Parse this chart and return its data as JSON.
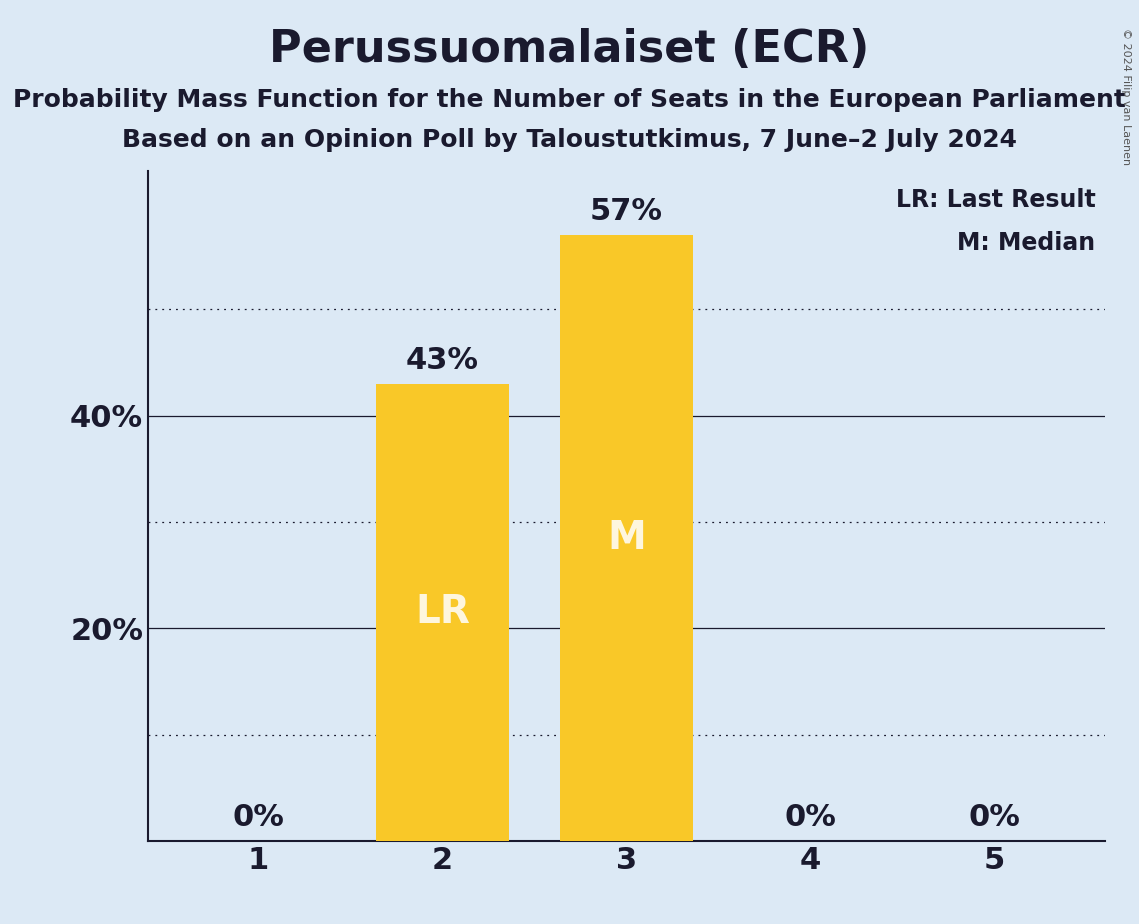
{
  "title": "Perussuomalaiset (ECR)",
  "subtitle1": "Probability Mass Function for the Number of Seats in the European Parliament",
  "subtitle2": "Based on an Opinion Poll by Taloustutkimus, 7 June–2 July 2024",
  "copyright": "© 2024 Filip van Laenen",
  "categories": [
    1,
    2,
    3,
    4,
    5
  ],
  "values": [
    0,
    43,
    57,
    0,
    0
  ],
  "bar_color": "#F9C828",
  "background_color": "#dce9f5",
  "bar_labels": [
    "0%",
    "43%",
    "57%",
    "0%",
    "0%"
  ],
  "bar_annotations": [
    "",
    "LR",
    "M",
    "",
    ""
  ],
  "yticks": [
    20,
    40
  ],
  "ytick_labels": [
    "20%",
    "40%"
  ],
  "ylim": [
    0,
    63
  ],
  "solid_gridlines": [
    20,
    40
  ],
  "dotted_gridlines": [
    10,
    30,
    50
  ],
  "legend_text": "LR: Last Result\nM: Median",
  "title_fontsize": 32,
  "subtitle_fontsize": 18,
  "axis_label_fontsize": 22,
  "bar_label_fontsize": 22,
  "annotation_fontsize": 28,
  "legend_fontsize": 17,
  "copyright_fontsize": 8
}
